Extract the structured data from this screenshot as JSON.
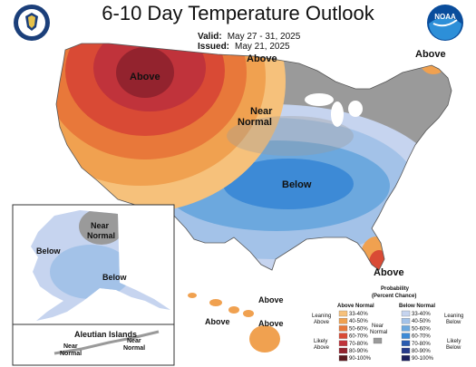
{
  "title": "6-10 Day Temperature Outlook",
  "valid": {
    "label": "Valid:",
    "value": "May 27 - 31, 2025"
  },
  "issued": {
    "label": "Issued:",
    "value": "May 21, 2025"
  },
  "logos": {
    "left": "doc-seal-icon",
    "right": "noaa-logo-icon",
    "noaa_text": "NOAA"
  },
  "map_labels": {
    "above_northwest": "Above",
    "above_north": "Above",
    "above_northeast": "Above",
    "near_normal_line1": "Near",
    "near_normal_line2": "Normal",
    "below_center": "Below",
    "above_florida": "Above",
    "ak_below_west": "Below",
    "ak_near_line1": "Near",
    "ak_near_line2": "Normal",
    "ak_below_south": "Below",
    "hi_above_1": "Above",
    "hi_above_2": "Above",
    "hi_above_3": "Above",
    "aleutian_title": "Aleutian Islands",
    "al_near1_line1": "Near",
    "al_near1_line2": "Normal",
    "al_near2_line1": "Near",
    "al_near2_line2": "Normal"
  },
  "legend": {
    "title_line1": "Probability",
    "title_line2": "(Percent Chance)",
    "above_header": "Above Normal",
    "below_header": "Below Normal",
    "near_label_line1": "Near",
    "near_label_line2": "Normal",
    "leaning_above_1": "Leaning",
    "leaning_above_2": "Above",
    "likely_above_1": "Likely",
    "likely_above_2": "Above",
    "leaning_below_1": "Leaning",
    "leaning_below_2": "Below",
    "likely_below_1": "Likely",
    "likely_below_2": "Below",
    "above_rows": [
      {
        "range": "33-40%",
        "color": "#f6c17b"
      },
      {
        "range": "40-50%",
        "color": "#f0a150"
      },
      {
        "range": "50-60%",
        "color": "#e8783a"
      },
      {
        "range": "60-70%",
        "color": "#d94a35"
      },
      {
        "range": "70-80%",
        "color": "#c0333b"
      },
      {
        "range": "80-90%",
        "color": "#93232e"
      },
      {
        "range": "90-100%",
        "color": "#5c1a1f"
      }
    ],
    "below_rows": [
      {
        "range": "33-40%",
        "color": "#c6d4ef"
      },
      {
        "range": "40-50%",
        "color": "#a3c2e8"
      },
      {
        "range": "50-60%",
        "color": "#6ca8de"
      },
      {
        "range": "60-70%",
        "color": "#3d8ad6"
      },
      {
        "range": "70-80%",
        "color": "#2a5bb0"
      },
      {
        "range": "80-90%",
        "color": "#263a8a"
      },
      {
        "range": "90-100%",
        "color": "#1b1f5c"
      }
    ],
    "near_color": "#9a9a9a"
  }
}
